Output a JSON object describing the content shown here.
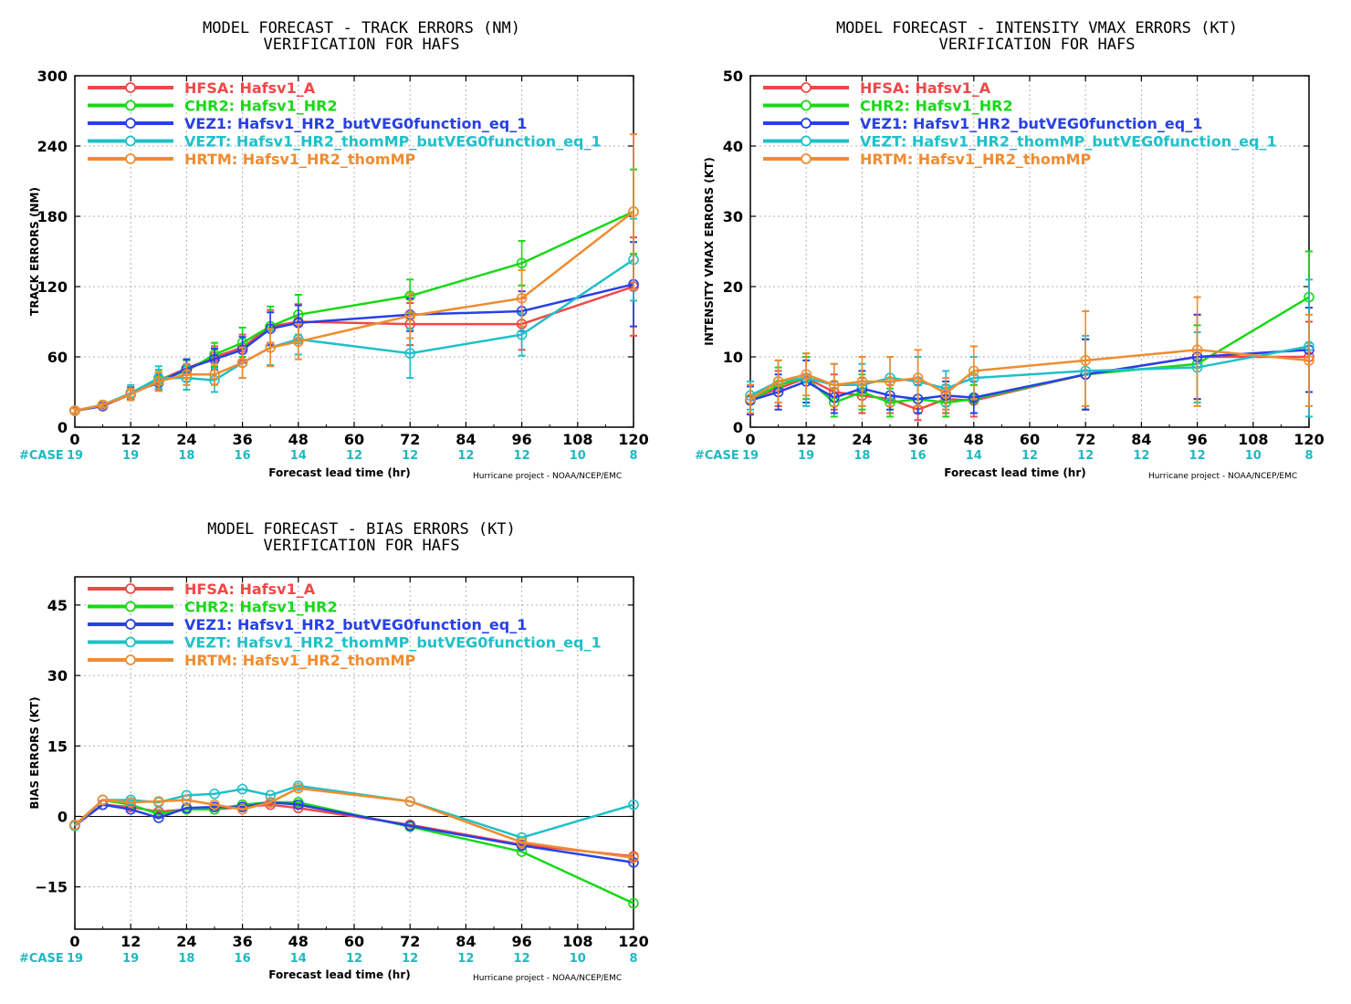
{
  "case_label": "#CASE",
  "credit": "Hurricane project - NOAA/NCEP/EMC",
  "xlabel": "Forecast lead time (hr)",
  "series_meta": [
    {
      "id": "HFSA",
      "label": "HFSA:  Hafsv1_A",
      "color": "#f04848"
    },
    {
      "id": "CHR2",
      "label": "CHR2:  Hafsv1_HR2",
      "color": "#18d818"
    },
    {
      "id": "VEZ1",
      "label": "VEZ1:  Hafsv1_HR2_butVEG0function_eq_1",
      "color": "#2840e8"
    },
    {
      "id": "VEZT",
      "label": "VEZT:  Hafsv1_HR2_thomMP_butVEG0function_eq_1",
      "color": "#20c0c8"
    },
    {
      "id": "HRTM",
      "label": "HRTM:  Hafsv1_HR2_thomMP",
      "color": "#f08c30"
    }
  ],
  "chart_data": [
    {
      "type": "line",
      "title": "MODEL FORECAST - TRACK ERRORS (NM)",
      "subtitle": "VERIFICATION FOR HAFS",
      "xlabel": "Forecast lead time (hr)",
      "ylabel": "TRACK ERRORS (NM)",
      "xlim": [
        0,
        120
      ],
      "ylim": [
        0,
        300
      ],
      "xticks": [
        0,
        12,
        24,
        36,
        48,
        60,
        72,
        84,
        96,
        108,
        120
      ],
      "yticks": [
        0,
        60,
        120,
        180,
        240,
        300
      ],
      "case_x": [
        0,
        12,
        24,
        36,
        48,
        60,
        72,
        84,
        96,
        108,
        120
      ],
      "case_counts": [
        19,
        19,
        18,
        16,
        14,
        12,
        12,
        12,
        12,
        10,
        8
      ],
      "grid": true,
      "legend": "top-left",
      "series": [
        {
          "name": "HFSA",
          "x": [
            0,
            6,
            12,
            18,
            24,
            30,
            36,
            42,
            48,
            72,
            96,
            120
          ],
          "values": [
            14,
            18,
            28,
            40,
            50,
            60,
            68,
            86,
            90,
            88,
            88,
            120
          ],
          "err": [
            [
              12,
              16
            ],
            [
              16,
              21
            ],
            [
              24,
              33
            ],
            [
              33,
              47
            ],
            [
              42,
              58
            ],
            [
              51,
              69
            ],
            [
              57,
              79
            ],
            [
              72,
              100
            ],
            [
              75,
              105
            ],
            [
              70,
              106
            ],
            [
              66,
              110
            ],
            [
              78,
              162
            ]
          ]
        },
        {
          "name": "CHR2",
          "x": [
            0,
            6,
            12,
            18,
            24,
            30,
            36,
            42,
            48,
            72,
            96,
            120
          ],
          "values": [
            14,
            19,
            28,
            40,
            48,
            62,
            72,
            86,
            96,
            112,
            140,
            184
          ],
          "err": [
            [
              12,
              16
            ],
            [
              17,
              22
            ],
            [
              23,
              34
            ],
            [
              32,
              49
            ],
            [
              39,
              57
            ],
            [
              52,
              72
            ],
            [
              60,
              85
            ],
            [
              70,
              103
            ],
            [
              79,
              113
            ],
            [
              98,
              126
            ],
            [
              121,
              159
            ],
            [
              148,
              220
            ]
          ]
        },
        {
          "name": "VEZ1",
          "x": [
            0,
            6,
            12,
            18,
            24,
            30,
            36,
            42,
            48,
            72,
            96,
            120
          ],
          "values": [
            14,
            18,
            29,
            38,
            50,
            58,
            66,
            84,
            89,
            96,
            99,
            122
          ],
          "err": [
            [
              12,
              16
            ],
            [
              16,
              21
            ],
            [
              24,
              34
            ],
            [
              31,
              45
            ],
            [
              42,
              58
            ],
            [
              49,
              67
            ],
            [
              55,
              77
            ],
            [
              70,
              98
            ],
            [
              74,
              104
            ],
            [
              82,
              110
            ],
            [
              82,
              116
            ],
            [
              86,
              158
            ]
          ]
        },
        {
          "name": "VEZT",
          "x": [
            0,
            6,
            12,
            18,
            24,
            30,
            36,
            42,
            48,
            72,
            96,
            120
          ],
          "values": [
            14,
            19,
            29,
            42,
            42,
            40,
            55,
            68,
            75,
            63,
            79,
            143
          ],
          "err": [
            [
              12,
              16
            ],
            [
              17,
              22
            ],
            [
              23,
              36
            ],
            [
              33,
              52
            ],
            [
              32,
              52
            ],
            [
              30,
              50
            ],
            [
              42,
              68
            ],
            [
              53,
              83
            ],
            [
              62,
              88
            ],
            [
              42,
              84
            ],
            [
              61,
              97
            ],
            [
              108,
              178
            ]
          ]
        },
        {
          "name": "HRTM",
          "x": [
            0,
            6,
            12,
            18,
            24,
            30,
            36,
            42,
            48,
            72,
            96,
            120
          ],
          "values": [
            14,
            19,
            28,
            39,
            45,
            45,
            55,
            68,
            73,
            95,
            110,
            184
          ],
          "err": [
            [
              12,
              16
            ],
            [
              17,
              22
            ],
            [
              23,
              33
            ],
            [
              31,
              47
            ],
            [
              36,
              54
            ],
            [
              36,
              54
            ],
            [
              42,
              68
            ],
            [
              52,
              84
            ],
            [
              58,
              88
            ],
            [
              76,
              114
            ],
            [
              86,
              134
            ],
            [
              118,
              250
            ]
          ]
        }
      ]
    },
    {
      "type": "line",
      "title": "MODEL FORECAST - INTENSITY VMAX ERRORS (KT)",
      "subtitle": "VERIFICATION FOR HAFS",
      "xlabel": "Forecast lead time (hr)",
      "ylabel": "INTENSITY VMAX ERRORS (KT)",
      "xlim": [
        0,
        120
      ],
      "ylim": [
        0,
        50
      ],
      "xticks": [
        0,
        12,
        24,
        36,
        48,
        60,
        72,
        84,
        96,
        108,
        120
      ],
      "yticks": [
        0,
        10,
        20,
        30,
        40,
        50
      ],
      "case_x": [
        0,
        12,
        24,
        36,
        48,
        60,
        72,
        84,
        96,
        108,
        120
      ],
      "case_counts": [
        19,
        19,
        18,
        16,
        14,
        12,
        12,
        12,
        12,
        10,
        8
      ],
      "grid": true,
      "legend": "top-left",
      "series": [
        {
          "name": "HFSA",
          "x": [
            0,
            6,
            12,
            18,
            24,
            30,
            36,
            42,
            48,
            72,
            96,
            120
          ],
          "values": [
            4.0,
            5.5,
            7.0,
            5.0,
            4.5,
            4.0,
            2.5,
            4.0,
            3.8,
            7.5,
            10.0,
            10.0
          ],
          "err": [
            [
              2.0,
              6.0
            ],
            [
              3.0,
              8.0
            ],
            [
              4.0,
              10.0
            ],
            [
              2.5,
              7.5
            ],
            [
              2.0,
              7.0
            ],
            [
              2.0,
              6.0
            ],
            [
              1.0,
              4.0
            ],
            [
              2.0,
              6.0
            ],
            [
              1.5,
              6.0
            ],
            [
              2.5,
              12.5
            ],
            [
              4.0,
              16.0
            ],
            [
              5.0,
              15.0
            ]
          ]
        },
        {
          "name": "CHR2",
          "x": [
            0,
            6,
            12,
            18,
            24,
            30,
            36,
            42,
            48,
            72,
            96,
            120
          ],
          "values": [
            3.8,
            6.0,
            7.0,
            3.5,
            5.0,
            3.5,
            4.0,
            3.5,
            4.0,
            7.5,
            9.0,
            18.5
          ],
          "err": [
            [
              1.8,
              5.8
            ],
            [
              3.5,
              8.5
            ],
            [
              4.0,
              10.0
            ],
            [
              1.5,
              5.5
            ],
            [
              2.5,
              7.5
            ],
            [
              1.5,
              5.5
            ],
            [
              2.0,
              6.0
            ],
            [
              1.5,
              5.5
            ],
            [
              2.0,
              6.0
            ],
            [
              2.5,
              12.5
            ],
            [
              3.5,
              14.5
            ],
            [
              12.0,
              25.0
            ]
          ]
        },
        {
          "name": "VEZ1",
          "x": [
            0,
            6,
            12,
            18,
            24,
            30,
            36,
            42,
            48,
            72,
            96,
            120
          ],
          "values": [
            3.8,
            5.0,
            6.5,
            4.2,
            5.5,
            4.5,
            4.0,
            4.5,
            4.2,
            7.5,
            10.0,
            11.0
          ],
          "err": [
            [
              1.8,
              5.8
            ],
            [
              2.5,
              7.5
            ],
            [
              3.5,
              9.5
            ],
            [
              2.0,
              6.5
            ],
            [
              3.0,
              8.0
            ],
            [
              2.5,
              6.5
            ],
            [
              2.0,
              6.0
            ],
            [
              2.5,
              6.5
            ],
            [
              2.0,
              6.5
            ],
            [
              2.5,
              12.5
            ],
            [
              4.0,
              16.0
            ],
            [
              5.0,
              17.0
            ]
          ]
        },
        {
          "name": "VEZT",
          "x": [
            0,
            6,
            12,
            18,
            24,
            30,
            36,
            42,
            48,
            72,
            96,
            120
          ],
          "values": [
            4.5,
            6.5,
            7.0,
            6.0,
            6.0,
            7.0,
            6.5,
            5.5,
            7.0,
            8.0,
            8.5,
            11.5
          ],
          "err": [
            [
              2.5,
              6.5
            ],
            [
              3.5,
              9.5
            ],
            [
              3.0,
              10.5
            ],
            [
              3.0,
              9.0
            ],
            [
              3.0,
              9.0
            ],
            [
              4.0,
              10.0
            ],
            [
              3.0,
              10.0
            ],
            [
              3.0,
              8.0
            ],
            [
              4.0,
              10.0
            ],
            [
              3.0,
              13.0
            ],
            [
              3.5,
              13.5
            ],
            [
              1.5,
              21.0
            ]
          ]
        },
        {
          "name": "HRTM",
          "x": [
            0,
            6,
            12,
            18,
            24,
            30,
            36,
            42,
            48,
            72,
            96,
            120
          ],
          "values": [
            4.0,
            6.5,
            7.5,
            6.0,
            6.5,
            6.5,
            7.0,
            4.8,
            8.0,
            9.5,
            11.0,
            9.5
          ],
          "err": [
            [
              2.0,
              6.0
            ],
            [
              3.5,
              9.5
            ],
            [
              4.5,
              10.5
            ],
            [
              3.0,
              9.0
            ],
            [
              3.0,
              10.0
            ],
            [
              3.0,
              10.0
            ],
            [
              3.0,
              11.0
            ],
            [
              2.5,
              7.0
            ],
            [
              4.0,
              11.5
            ],
            [
              3.0,
              16.5
            ],
            [
              3.0,
              18.5
            ],
            [
              3.0,
              16.0
            ]
          ]
        }
      ]
    },
    {
      "type": "line",
      "title": "MODEL FORECAST - BIAS ERRORS (KT)",
      "subtitle": "VERIFICATION FOR HAFS",
      "xlabel": "Forecast lead time (hr)",
      "ylabel": "BIAS ERRORS (KT)",
      "xlim": [
        0,
        120
      ],
      "ylim": [
        -24,
        51
      ],
      "xticks": [
        0,
        12,
        24,
        36,
        48,
        60,
        72,
        84,
        96,
        108,
        120
      ],
      "yticks": [
        -15,
        0,
        15,
        30,
        45
      ],
      "yticklabels": [
        "−15",
        "0",
        "15",
        "30",
        "45"
      ],
      "case_x": [
        0,
        12,
        24,
        36,
        48,
        60,
        72,
        84,
        96,
        108,
        120
      ],
      "case_counts": [
        19,
        19,
        18,
        16,
        14,
        12,
        12,
        12,
        12,
        10,
        8
      ],
      "grid": true,
      "zero_line": true,
      "legend": "top-left",
      "series": [
        {
          "name": "HFSA",
          "x": [
            0,
            6,
            12,
            18,
            24,
            30,
            36,
            42,
            48,
            72,
            96,
            120
          ],
          "values": [
            -2.0,
            2.5,
            2.0,
            1.0,
            1.5,
            1.5,
            2.0,
            2.5,
            1.8,
            -1.8,
            -6.0,
            -8.5
          ]
        },
        {
          "name": "CHR2",
          "x": [
            0,
            6,
            12,
            18,
            24,
            30,
            36,
            42,
            48,
            72,
            96,
            120
          ],
          "values": [
            -2.0,
            3.5,
            2.5,
            0.5,
            1.5,
            1.5,
            2.5,
            3.0,
            3.0,
            -2.2,
            -7.5,
            -18.5
          ]
        },
        {
          "name": "VEZ1",
          "x": [
            0,
            6,
            12,
            18,
            24,
            30,
            36,
            42,
            48,
            72,
            96,
            120
          ],
          "values": [
            -1.8,
            2.5,
            1.5,
            -0.3,
            1.8,
            2.0,
            2.0,
            3.0,
            2.5,
            -2.0,
            -6.2,
            -9.8
          ]
        },
        {
          "name": "VEZT",
          "x": [
            0,
            6,
            12,
            18,
            24,
            30,
            36,
            42,
            48,
            72,
            96,
            120
          ],
          "values": [
            -2.0,
            3.5,
            3.5,
            3.0,
            4.5,
            4.8,
            5.8,
            4.5,
            6.5,
            3.2,
            -4.5,
            2.5
          ]
        },
        {
          "name": "HRTM",
          "x": [
            0,
            6,
            12,
            18,
            24,
            30,
            36,
            42,
            48,
            72,
            96,
            120
          ],
          "values": [
            -1.8,
            3.5,
            3.0,
            3.2,
            3.5,
            2.5,
            1.5,
            3.0,
            6.0,
            3.2,
            -5.5,
            -8.8
          ]
        }
      ]
    }
  ]
}
